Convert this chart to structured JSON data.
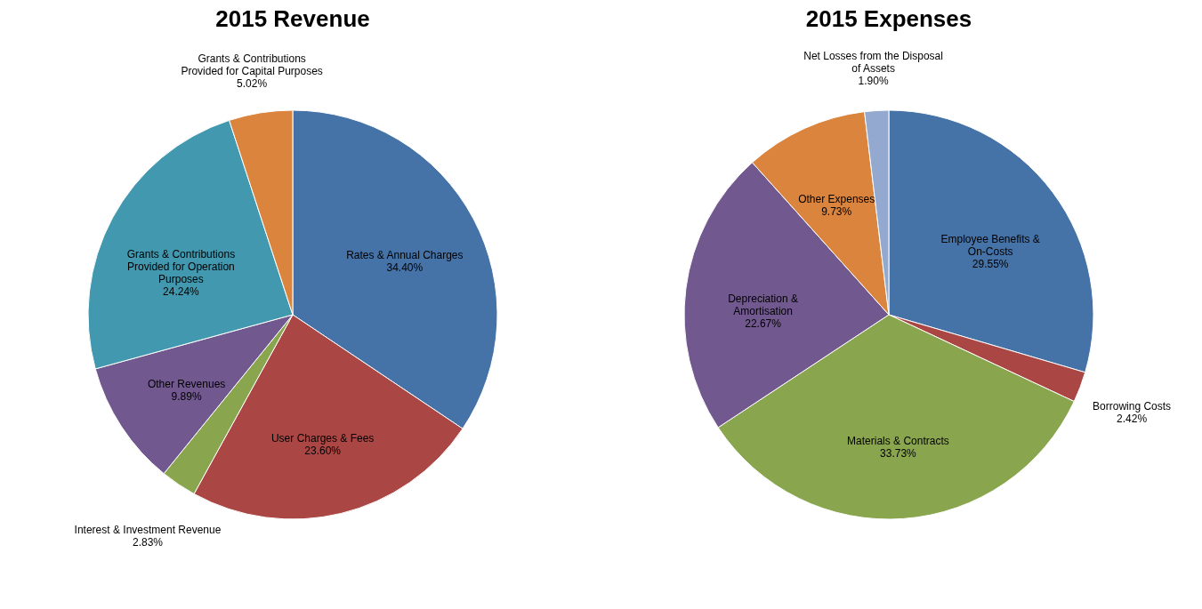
{
  "chart_data": [
    {
      "type": "pie",
      "title": "2015 Revenue",
      "categories": [
        "Rates & Annual Charges",
        "User Charges & Fees",
        "Interest & Investment Revenue",
        "Other Revenues",
        "Grants & Contributions Provided for Operation Purposes",
        "Grants & Contributions Provided for Capital Purposes"
      ],
      "values": [
        34.4,
        23.6,
        2.83,
        9.89,
        24.24,
        5.02
      ],
      "value_labels": [
        "34.40%",
        "23.60%",
        "2.83%",
        "9.89%",
        "24.24%",
        "5.02%"
      ],
      "colors": [
        "#4572a7",
        "#aa4643",
        "#89a54e",
        "#71588f",
        "#4198af",
        "#db843d"
      ]
    },
    {
      "type": "pie",
      "title": "2015 Expenses",
      "categories": [
        "Employee Benefits & On-Costs",
        "Borrowing Costs",
        "Materials & Contracts",
        "Depreciation & Amortisation",
        "Other Expenses",
        "Net Losses from the Disposal of Assets"
      ],
      "values": [
        29.55,
        2.42,
        33.73,
        22.67,
        9.73,
        1.9
      ],
      "value_labels": [
        "29.55%",
        "2.42%",
        "33.73%",
        "22.67%",
        "9.73%",
        "1.90%"
      ],
      "colors": [
        "#4572a7",
        "#aa4643",
        "#89a54e",
        "#71588f",
        "#db843d",
        "#93a9cf"
      ]
    }
  ]
}
